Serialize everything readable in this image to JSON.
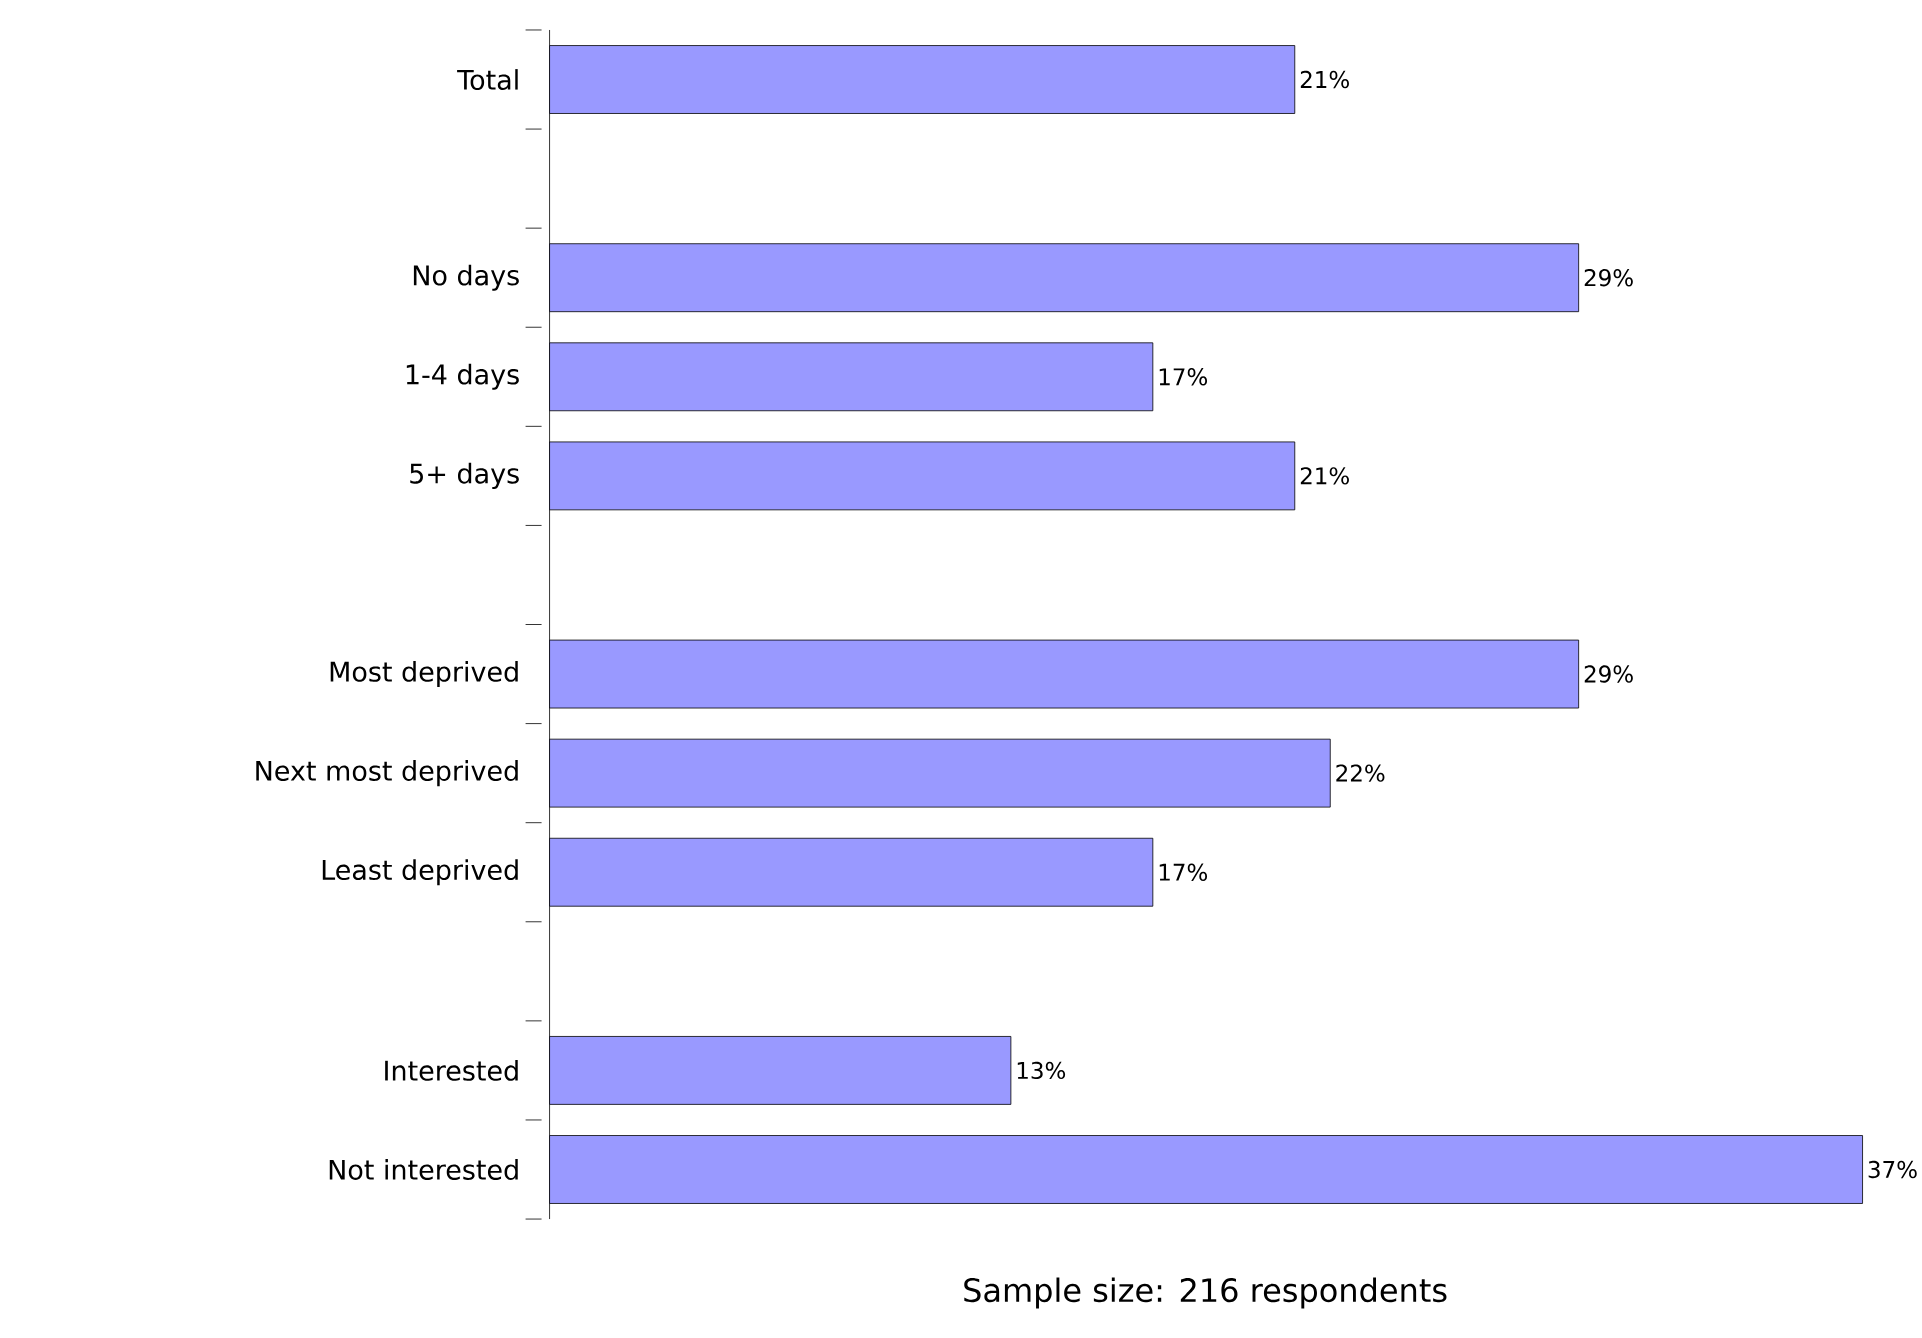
{
  "chart_data": {
    "type": "bar",
    "orientation": "horizontal",
    "categories": [
      "Total",
      null,
      "No days",
      "1-4 days",
      "5+ days",
      null,
      "Most deprived",
      "Next most deprived",
      "Least deprived",
      null,
      "Interested",
      "Not interested"
    ],
    "values": [
      21,
      null,
      29,
      17,
      21,
      null,
      29,
      22,
      17,
      null,
      13,
      37
    ],
    "value_labels": [
      "21%",
      null,
      "29%",
      "17%",
      "21%",
      null,
      "29%",
      "22%",
      "17%",
      null,
      "13%",
      "37%"
    ],
    "color": "#9999ff",
    "annotations": [
      "Sample size: 216 respondents"
    ]
  }
}
